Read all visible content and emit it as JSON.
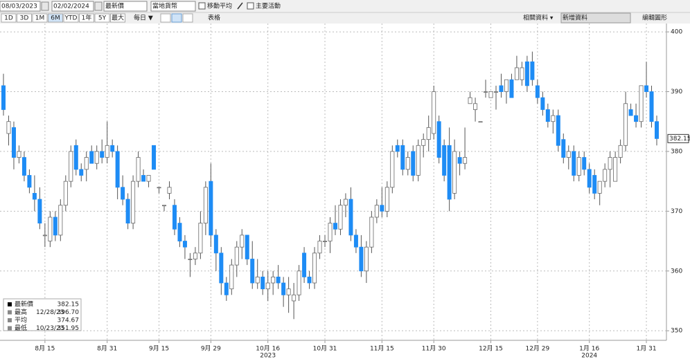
{
  "toolbar": {
    "start_date": "08/03/2023",
    "end_date": "02/02/2024",
    "field": "最新價",
    "currency": "當地貨幣",
    "moving_average": "移動平均",
    "events": "主要活動",
    "ranges": [
      "1D",
      "3D",
      "1M",
      "6M",
      "YTD",
      "1年",
      "5Y",
      "最大"
    ],
    "selected_range": "6M",
    "frequency": "每日 ▼",
    "table": "表格",
    "related": "相關資料 ▾",
    "add_data": "新增資料",
    "edit": "编輯圖形"
  },
  "chart_data": {
    "type": "candlestick",
    "categories": [
      null,
      null,
      null,
      null,
      null,
      null,
      null,
      null,
      "8月 15",
      null,
      null,
      null,
      null,
      null,
      null,
      null,
      null,
      null,
      null,
      null,
      "8月 31",
      null,
      null,
      null,
      null,
      null,
      null,
      null,
      null,
      null,
      "9月 15",
      null,
      null,
      null,
      null,
      null,
      null,
      null,
      null,
      null,
      "9月 29",
      null,
      null,
      null,
      null,
      null,
      null,
      null,
      null,
      null,
      null,
      "10月 16",
      null,
      null,
      null,
      null,
      null,
      null,
      null,
      null,
      null,
      null,
      "10月 31",
      null,
      null,
      null,
      null,
      null,
      null,
      null,
      null,
      null,
      null,
      "11月 15",
      null,
      null,
      null,
      null,
      null,
      null,
      null,
      null,
      null,
      "11月 30",
      null,
      null,
      null,
      null,
      null,
      null,
      null,
      null,
      null,
      null,
      "12月 15",
      null,
      null,
      null,
      null,
      null,
      null,
      null,
      null,
      "12月 29",
      null,
      null,
      null,
      null,
      null,
      null,
      null,
      null,
      null,
      "1月 16",
      null,
      null,
      null,
      null,
      null,
      null,
      null,
      null,
      null,
      null,
      "1月 31",
      null,
      null
    ],
    "year_labels": [
      "2023",
      "2024"
    ],
    "open": [
      391,
      383,
      384,
      379,
      379,
      376,
      373,
      372,
      366,
      365,
      369,
      366,
      371,
      375,
      381,
      377,
      377,
      380,
      378,
      380,
      379,
      381,
      380,
      374,
      372,
      368,
      375,
      376,
      375,
      381,
      374,
      371,
      373,
      371,
      368,
      365,
      362,
      362,
      363,
      368,
      375,
      366,
      363,
      358,
      357,
      361,
      364,
      366,
      362,
      358,
      359,
      357,
      358,
      359,
      358,
      356,
      355,
      356,
      363,
      359,
      358,
      363,
      365,
      365,
      368,
      367,
      371,
      372,
      366,
      364,
      360,
      364,
      369,
      371,
      370,
      374,
      381,
      381,
      377,
      380,
      376,
      381,
      382,
      383,
      385,
      381,
      381,
      373,
      379,
      378,
      388,
      387,
      385,
      390,
      389,
      390,
      391,
      390,
      392,
      392,
      392,
      395,
      395,
      391,
      389,
      387,
      385,
      386,
      382,
      379,
      380,
      376,
      379,
      377,
      376,
      373,
      375,
      377,
      375,
      379,
      381,
      387,
      386,
      385,
      391,
      390,
      385
    ],
    "high": [
      393,
      386,
      385,
      381,
      380,
      377,
      376,
      374,
      368,
      370,
      370,
      372,
      376,
      381,
      382,
      378,
      380,
      381,
      381,
      382,
      385,
      382,
      381,
      376,
      373,
      376,
      380,
      377,
      376,
      381,
      374,
      371,
      375,
      372,
      369,
      366,
      363,
      364,
      370,
      375,
      378,
      367,
      364,
      359,
      362,
      365,
      367,
      366,
      365,
      362,
      360,
      360,
      360,
      361,
      359,
      359,
      358,
      361,
      364,
      360,
      364,
      366,
      366,
      369,
      371,
      372,
      373,
      374,
      367,
      366,
      365,
      370,
      372,
      374,
      375,
      381,
      382,
      382,
      380,
      381,
      382,
      383,
      386,
      391,
      386,
      382,
      384,
      382,
      380,
      384,
      390,
      389,
      385,
      392,
      390,
      391,
      393,
      392,
      393,
      396,
      395,
      396,
      396.7,
      392,
      390,
      388,
      387,
      387,
      383,
      381,
      381,
      380,
      380,
      378,
      377,
      375,
      378,
      380,
      380,
      382,
      390,
      388,
      388,
      391,
      395,
      391,
      386
    ],
    "low": [
      386,
      381,
      377,
      378,
      375,
      373,
      370,
      367,
      364,
      364,
      365,
      365,
      370,
      374,
      376,
      375,
      375,
      378,
      377,
      378,
      378,
      379,
      372,
      371,
      367,
      367,
      374,
      375,
      374,
      377,
      373,
      370,
      372,
      366,
      364,
      362,
      359,
      361,
      362,
      366,
      364,
      360,
      356,
      355,
      356,
      359,
      362,
      361,
      357,
      357,
      356,
      355,
      356,
      357,
      354,
      353,
      351.95,
      355,
      358,
      357,
      357,
      362,
      364,
      363,
      366,
      366,
      369,
      365,
      363,
      359,
      358,
      363,
      368,
      369,
      369,
      373,
      379,
      376,
      376,
      375,
      375,
      379,
      380,
      382,
      378,
      375,
      370,
      372,
      376,
      377,
      388,
      385,
      385,
      389,
      389,
      387,
      389,
      388,
      389,
      392,
      391,
      390,
      391,
      388,
      386,
      384,
      383,
      380,
      378,
      377,
      375,
      375,
      376,
      373,
      372,
      371,
      374,
      374,
      375,
      378,
      380,
      386,
      384,
      384,
      389,
      384,
      381
    ],
    "close": [
      387,
      385,
      379,
      380,
      376,
      374,
      372,
      368,
      366,
      369,
      366,
      371,
      375,
      380,
      377,
      376,
      379,
      378,
      380,
      379,
      381,
      380,
      374,
      372,
      368,
      375,
      379,
      375,
      376,
      377,
      374,
      371,
      374,
      367,
      365,
      364,
      362,
      363,
      368,
      374,
      366,
      363,
      358,
      356,
      361,
      364,
      366,
      362,
      358,
      359,
      357,
      358,
      359,
      358,
      356,
      357,
      356,
      360,
      359,
      358,
      363,
      365,
      365,
      368,
      367,
      371,
      372,
      366,
      364,
      360,
      364,
      369,
      371,
      370,
      374,
      380,
      380,
      377,
      379,
      376,
      381,
      382,
      384,
      390,
      379,
      376,
      372,
      380,
      378,
      379,
      389,
      388,
      385,
      390,
      390,
      390,
      390,
      392,
      389,
      394,
      394,
      391,
      392,
      389,
      387,
      385,
      386,
      381,
      379,
      380,
      376,
      379,
      377,
      374,
      373,
      375,
      377,
      379,
      379,
      381,
      388,
      386,
      385,
      391,
      390,
      385,
      382.15
    ],
    "up_color": "#ffffff",
    "down_color": "#1e8cf5",
    "ylim": [
      348.4,
      401.4
    ],
    "yticks": [
      350,
      360,
      370,
      380,
      390,
      400
    ],
    "grid": true,
    "last_price": 382.15,
    "legend": [
      {
        "name": "最新價",
        "value": 382.15
      },
      {
        "name": "最高",
        "date": "12/28/23",
        "value": 396.7,
        "value_label": "396.70"
      },
      {
        "name": "平均",
        "value": 374.67
      },
      {
        "name": "最低",
        "date": "10/23/23",
        "value": 351.95
      }
    ]
  }
}
